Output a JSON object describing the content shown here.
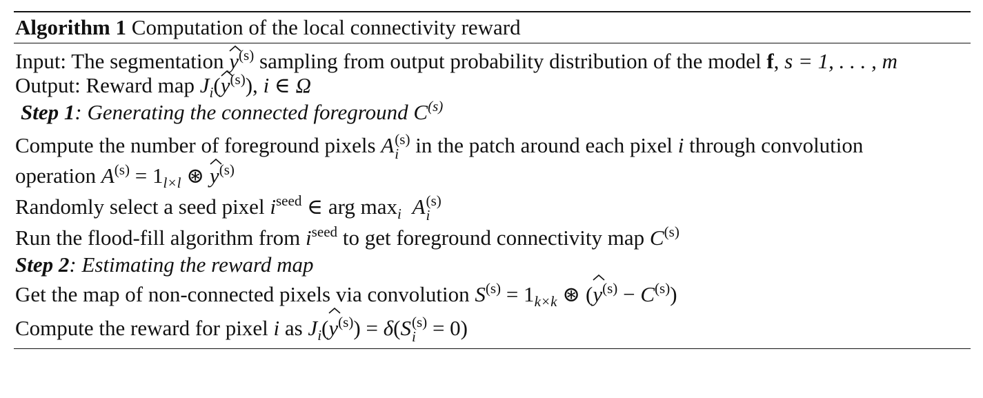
{
  "algorithm": {
    "label": "Algorithm 1",
    "title": "Computation of the local connectivity reward"
  },
  "input": {
    "prefix": "Input: The segmentation",
    "text_after_y": "sampling from output probability distribution of the model",
    "model_symbol": "f",
    "s_equals": "s =",
    "range": "1, . . . , m"
  },
  "output": {
    "prefix": "Output: Reward map",
    "suffix": "i ∈ Ω"
  },
  "step1": {
    "label": "Step 1",
    "title": ": Generating the connected foreground",
    "symbol": "C"
  },
  "step1_lines": {
    "compute_a": "Compute the number of foreground pixels",
    "compute_b": "in the patch around each pixel",
    "compute_c": "through convolution",
    "operation": "operation",
    "select": "Randomly select a seed pixel",
    "argmax": "arg max",
    "flood_a": "Run the flood-fill algorithm from",
    "flood_b": "to get foreground connectivity map",
    "seed": "seed"
  },
  "step2": {
    "label": "Step 2",
    "title": ": Estimating the reward map"
  },
  "step2_lines": {
    "nonconnected": "Get the map of non-connected pixels via convolution",
    "reward_a": "Compute the reward for pixel",
    "reward_b": "as"
  },
  "symbols": {
    "s": "(s)",
    "i": "i",
    "l": "l×l",
    "k": "k×k",
    "conv": "⊛"
  }
}
